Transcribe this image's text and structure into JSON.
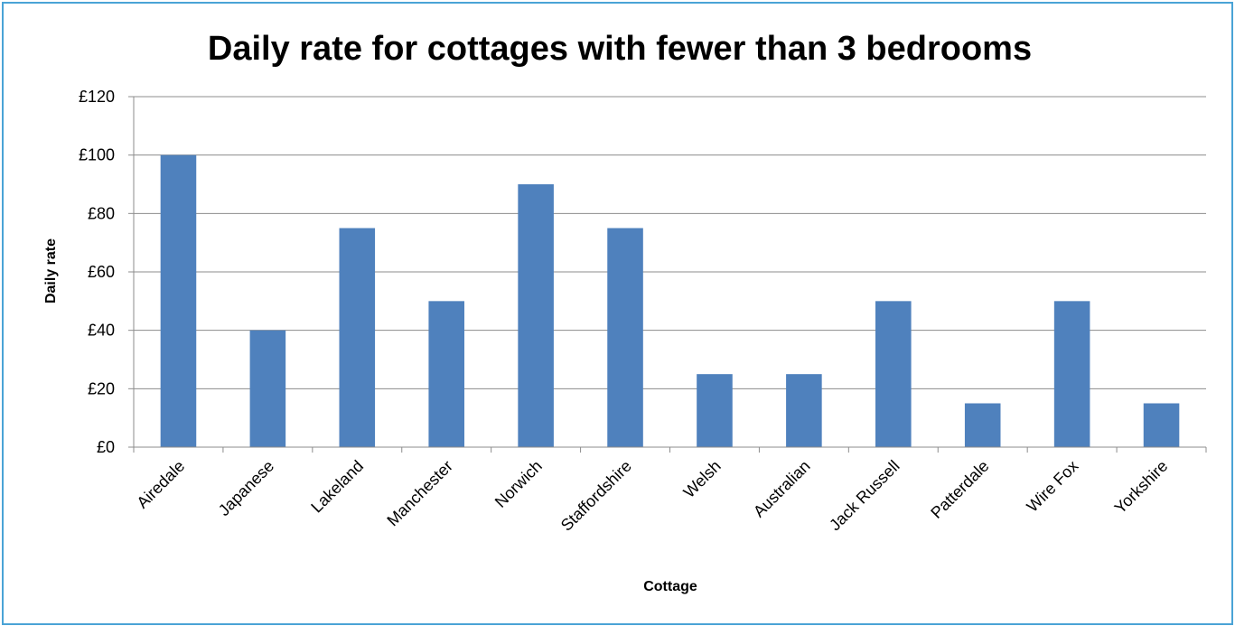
{
  "chart_data": {
    "type": "bar",
    "title": "Daily rate for cottages with fewer than 3 bedrooms",
    "xlabel": "Cottage",
    "ylabel": "Daily rate",
    "categories": [
      "Airedale",
      "Japanese",
      "Lakeland",
      "Manchester",
      "Norwich",
      "Staffordshire",
      "Welsh",
      "Australian",
      "Jack Russell",
      "Patterdale",
      "Wire Fox",
      "Yorkshire"
    ],
    "values": [
      100,
      40,
      75,
      50,
      90,
      75,
      25,
      25,
      50,
      15,
      50,
      15
    ],
    "y_ticks": [
      "£0",
      "£20",
      "£40",
      "£60",
      "£80",
      "£100",
      "£120"
    ],
    "ylim": [
      0,
      120
    ],
    "grid": true,
    "legend": "none",
    "bar_color": "#4f81bd"
  }
}
